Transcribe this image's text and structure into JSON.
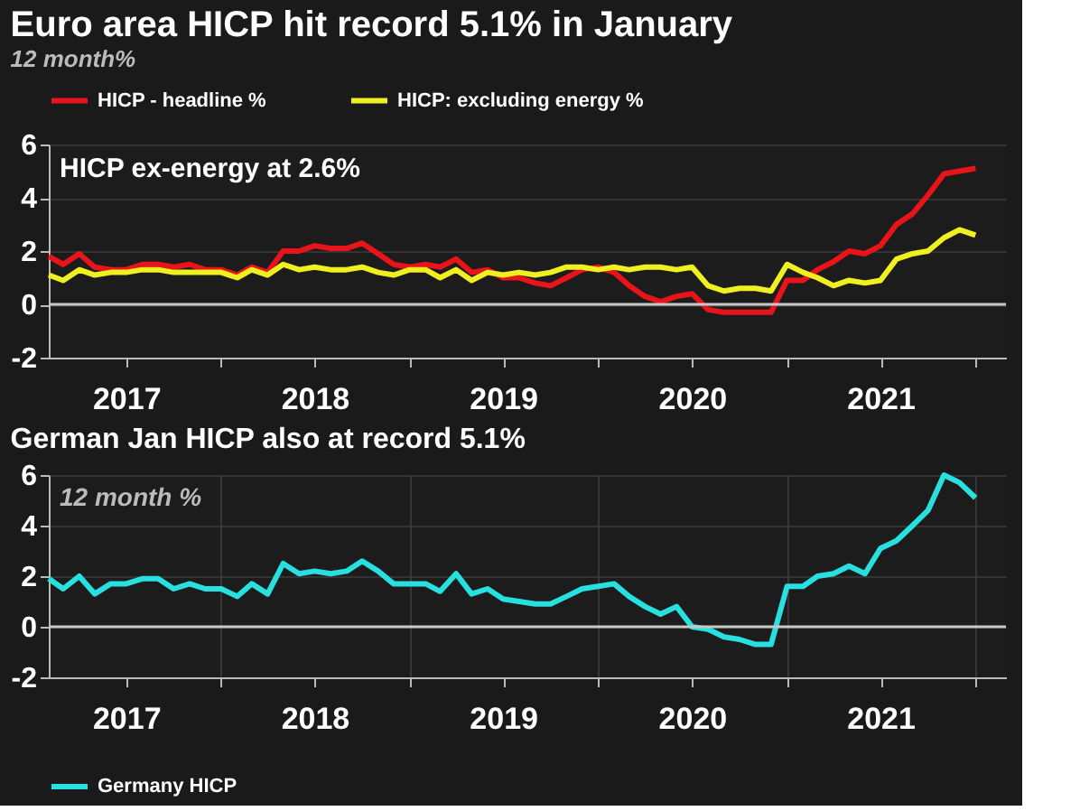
{
  "chart_data": [
    {
      "type": "line",
      "title": "Euro area HICP hit record 5.1% in January",
      "subtitle": "12 month%",
      "annotations": [
        "HICP ex-energy at 2.6%"
      ],
      "x": [
        "2017-02",
        "2017-03",
        "2017-04",
        "2017-05",
        "2017-06",
        "2017-07",
        "2017-08",
        "2017-09",
        "2017-10",
        "2017-11",
        "2017-12",
        "2018-01",
        "2018-02",
        "2018-03",
        "2018-04",
        "2018-05",
        "2018-06",
        "2018-07",
        "2018-08",
        "2018-09",
        "2018-10",
        "2018-11",
        "2018-12",
        "2019-01",
        "2019-02",
        "2019-03",
        "2019-04",
        "2019-05",
        "2019-06",
        "2019-07",
        "2019-08",
        "2019-09",
        "2019-10",
        "2019-11",
        "2019-12",
        "2020-01",
        "2020-02",
        "2020-03",
        "2020-04",
        "2020-05",
        "2020-06",
        "2020-07",
        "2020-08",
        "2020-09",
        "2020-10",
        "2020-11",
        "2020-12",
        "2021-01",
        "2021-02",
        "2021-03",
        "2021-04",
        "2021-05",
        "2021-06",
        "2021-07",
        "2021-08",
        "2021-09",
        "2021-10",
        "2021-11",
        "2021-12",
        "2022-01"
      ],
      "series": [
        {
          "name": "HICP - headline %",
          "color": "#e8141a",
          "values": [
            1.8,
            1.5,
            1.9,
            1.4,
            1.3,
            1.3,
            1.5,
            1.5,
            1.4,
            1.5,
            1.3,
            1.3,
            1.1,
            1.4,
            1.2,
            2.0,
            2.0,
            2.2,
            2.1,
            2.1,
            2.3,
            1.9,
            1.5,
            1.4,
            1.5,
            1.4,
            1.7,
            1.2,
            1.3,
            1.0,
            1.0,
            0.8,
            0.7,
            1.0,
            1.3,
            1.4,
            1.2,
            0.7,
            0.3,
            0.1,
            0.3,
            0.4,
            -0.2,
            -0.3,
            -0.3,
            -0.3,
            -0.3,
            0.9,
            0.9,
            1.3,
            1.6,
            2.0,
            1.9,
            2.2,
            3.0,
            3.4,
            4.1,
            4.9,
            5.0,
            5.1
          ]
        },
        {
          "name": "HICP: excluding energy %",
          "color": "#f0f020",
          "values": [
            1.1,
            0.9,
            1.3,
            1.1,
            1.2,
            1.2,
            1.3,
            1.3,
            1.2,
            1.2,
            1.2,
            1.2,
            1.0,
            1.3,
            1.1,
            1.5,
            1.3,
            1.4,
            1.3,
            1.3,
            1.4,
            1.2,
            1.1,
            1.3,
            1.3,
            1.0,
            1.3,
            0.9,
            1.2,
            1.1,
            1.2,
            1.1,
            1.2,
            1.4,
            1.4,
            1.3,
            1.4,
            1.3,
            1.4,
            1.4,
            1.3,
            1.4,
            0.7,
            0.5,
            0.6,
            0.6,
            0.5,
            1.5,
            1.2,
            1.0,
            0.7,
            0.9,
            0.8,
            0.9,
            1.7,
            1.9,
            2.0,
            2.5,
            2.8,
            2.6
          ]
        }
      ],
      "xlim": [
        "2017-02",
        "2022-03"
      ],
      "xticks": [
        {
          "value": "2017-07",
          "label": "2017"
        },
        {
          "value": "2018-01",
          "label": null
        },
        {
          "value": "2018-07",
          "label": "2018"
        },
        {
          "value": "2019-01",
          "label": null
        },
        {
          "value": "2019-07",
          "label": "2019"
        },
        {
          "value": "2020-01",
          "label": null
        },
        {
          "value": "2020-07",
          "label": "2020"
        },
        {
          "value": "2021-01",
          "label": null
        },
        {
          "value": "2021-07",
          "label": "2021"
        },
        {
          "value": "2022-01",
          "label": null
        }
      ],
      "ylim": [
        -2,
        6
      ],
      "yticks": [
        -2,
        0,
        2,
        4,
        6
      ],
      "grid": "y",
      "legend": "top left",
      "ref_lines": [
        {
          "axis": "y",
          "value": 0,
          "color": "#c8c8c8"
        }
      ]
    },
    {
      "type": "line",
      "title": "German Jan HICP also at record 5.1%",
      "annotations": [
        "12 month %"
      ],
      "x": [
        "2017-02",
        "2017-03",
        "2017-04",
        "2017-05",
        "2017-06",
        "2017-07",
        "2017-08",
        "2017-09",
        "2017-10",
        "2017-11",
        "2017-12",
        "2018-01",
        "2018-02",
        "2018-03",
        "2018-04",
        "2018-05",
        "2018-06",
        "2018-07",
        "2018-08",
        "2018-09",
        "2018-10",
        "2018-11",
        "2018-12",
        "2019-01",
        "2019-02",
        "2019-03",
        "2019-04",
        "2019-05",
        "2019-06",
        "2019-07",
        "2019-08",
        "2019-09",
        "2019-10",
        "2019-11",
        "2019-12",
        "2020-01",
        "2020-02",
        "2020-03",
        "2020-04",
        "2020-05",
        "2020-06",
        "2020-07",
        "2020-08",
        "2020-09",
        "2020-10",
        "2020-11",
        "2020-12",
        "2021-01",
        "2021-02",
        "2021-03",
        "2021-04",
        "2021-05",
        "2021-06",
        "2021-07",
        "2021-08",
        "2021-09",
        "2021-10",
        "2021-11",
        "2021-12",
        "2022-01"
      ],
      "series": [
        {
          "name": "Germany HICP",
          "color": "#29e0e0",
          "values": [
            1.9,
            1.5,
            2.0,
            1.3,
            1.7,
            1.7,
            1.9,
            1.9,
            1.5,
            1.7,
            1.5,
            1.5,
            1.2,
            1.7,
            1.3,
            2.5,
            2.1,
            2.2,
            2.1,
            2.2,
            2.6,
            2.2,
            1.7,
            1.7,
            1.7,
            1.4,
            2.1,
            1.3,
            1.5,
            1.1,
            1.0,
            0.9,
            0.9,
            1.2,
            1.5,
            1.6,
            1.7,
            1.2,
            0.8,
            0.5,
            0.8,
            0.0,
            -0.1,
            -0.4,
            -0.5,
            -0.7,
            -0.7,
            1.6,
            1.6,
            2.0,
            2.1,
            2.4,
            2.1,
            3.1,
            3.4,
            4.0,
            4.6,
            6.0,
            5.7,
            5.1
          ]
        }
      ],
      "xlim": [
        "2017-02",
        "2022-03"
      ],
      "xticks": [
        {
          "value": "2017-07",
          "label": "2017"
        },
        {
          "value": "2018-01",
          "label": null
        },
        {
          "value": "2018-07",
          "label": "2018"
        },
        {
          "value": "2019-01",
          "label": null
        },
        {
          "value": "2019-07",
          "label": "2019"
        },
        {
          "value": "2020-01",
          "label": null
        },
        {
          "value": "2020-07",
          "label": "2020"
        },
        {
          "value": "2021-01",
          "label": null
        },
        {
          "value": "2021-07",
          "label": "2021"
        },
        {
          "value": "2022-01",
          "label": null
        }
      ],
      "ylim": [
        -2,
        6
      ],
      "yticks": [
        -2,
        0,
        2,
        4,
        6
      ],
      "grid": true,
      "legend": "bottom left",
      "ref_lines": [
        {
          "axis": "y",
          "value": 0,
          "color": "#c8c8c8"
        }
      ]
    }
  ]
}
